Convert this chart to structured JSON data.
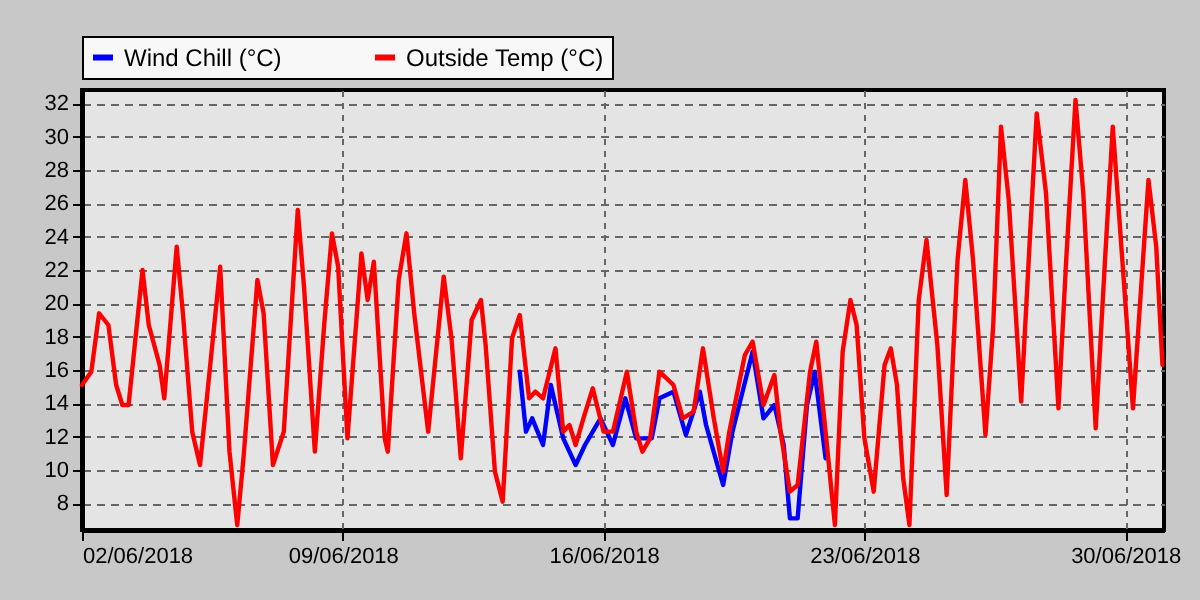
{
  "chart_data": {
    "type": "line",
    "xlim": [
      "2018-06-02T00:00",
      "2018-07-01T01:00"
    ],
    "xticks": [
      {
        "value": "2018-06-02",
        "label": "02/06/2018"
      },
      {
        "value": "2018-06-09",
        "label": "09/06/2018"
      },
      {
        "value": "2018-06-16",
        "label": "16/06/2018"
      },
      {
        "value": "2018-06-23",
        "label": "23/06/2018"
      },
      {
        "value": "2018-06-30",
        "label": "30/06/2018"
      }
    ],
    "ylim": [
      6.4,
      32.8
    ],
    "yticks": [
      8,
      10,
      12,
      14,
      16,
      18,
      20,
      22,
      24,
      26,
      28,
      30,
      32
    ],
    "grid": true,
    "legend": "top",
    "marker": "none",
    "line_style": "solid",
    "series": [
      {
        "name": "Wind Chill (°C)",
        "color": "#0000ff",
        "x": [
          "2018-06-13T18:00",
          "2018-06-13T22:00",
          "2018-06-14T02:00",
          "2018-06-14T09:00",
          "2018-06-14T14:00",
          "2018-06-14T22:00",
          "2018-06-15T06:00",
          "2018-06-15T12:00",
          "2018-06-15T22:00",
          "2018-06-16T06:00",
          "2018-06-16T14:00",
          "2018-06-16T21:00",
          "2018-06-17T07:00",
          "2018-06-17T12:00",
          "2018-06-17T21:00",
          "2018-06-18T05:00",
          "2018-06-18T14:00",
          "2018-06-18T18:00",
          "2018-06-19T05:00",
          "2018-06-19T11:00",
          "2018-06-20T00:00",
          "2018-06-20T07:00",
          "2018-06-20T14:00",
          "2018-06-20T20:00",
          "2018-06-21T00:00",
          "2018-06-21T05:00",
          "2018-06-21T11:00",
          "2018-06-21T16:00",
          "2018-06-21T23:00"
        ],
        "values": [
          15.9,
          12.3,
          13.1,
          11.5,
          15.1,
          11.9,
          10.3,
          11.5,
          13.1,
          11.5,
          14.3,
          11.9,
          11.9,
          14.3,
          14.7,
          12.1,
          14.7,
          12.7,
          9.1,
          12.3,
          17.1,
          13.1,
          13.9,
          11.5,
          7.1,
          7.1,
          13.9,
          15.9,
          10.7
        ]
      },
      {
        "name": "Outside Temp (°C)",
        "color": "#ff0000",
        "x": [
          "2018-06-02T00:00",
          "2018-06-02T06:00",
          "2018-06-02T11:00",
          "2018-06-02T17:00",
          "2018-06-02T22:00",
          "2018-06-03T02:00",
          "2018-06-03T06:00",
          "2018-06-03T15:00",
          "2018-06-03T19:00",
          "2018-06-04T02:00",
          "2018-06-04T05:00",
          "2018-06-04T13:00",
          "2018-06-04T17:00",
          "2018-06-04T23:00",
          "2018-06-05T04:00",
          "2018-06-05T08:00",
          "2018-06-05T17:00",
          "2018-06-05T23:00",
          "2018-06-06T04:00",
          "2018-06-06T08:00",
          "2018-06-06T17:00",
          "2018-06-06T21:00",
          "2018-06-07T03:00",
          "2018-06-07T10:00",
          "2018-06-07T19:00",
          "2018-06-07T23:00",
          "2018-06-08T06:00",
          "2018-06-08T12:00",
          "2018-06-08T17:00",
          "2018-06-08T21:00",
          "2018-06-09T03:00",
          "2018-06-09T12:00",
          "2018-06-09T16:00",
          "2018-06-09T20:00",
          "2018-06-10T03:00",
          "2018-06-10T05:00",
          "2018-06-10T12:00",
          "2018-06-10T17:00",
          "2018-06-10T22:00",
          "2018-06-11T07:00",
          "2018-06-11T17:00",
          "2018-06-11T22:00",
          "2018-06-12T04:00",
          "2018-06-12T11:00",
          "2018-06-12T17:00",
          "2018-06-12T20:00",
          "2018-06-13T02:00",
          "2018-06-13T07:00",
          "2018-06-13T13:00",
          "2018-06-13T18:00",
          "2018-06-14T00:00",
          "2018-06-14T04:00",
          "2018-06-14T09:00",
          "2018-06-14T17:00",
          "2018-06-14T22:00",
          "2018-06-15T02:00",
          "2018-06-15T06:00",
          "2018-06-15T11:00",
          "2018-06-15T17:00",
          "2018-06-16T00:00",
          "2018-06-16T06:00",
          "2018-06-16T15:00",
          "2018-06-16T21:00",
          "2018-06-17T01:00",
          "2018-06-17T06:00",
          "2018-06-17T12:00",
          "2018-06-17T21:00",
          "2018-06-18T03:00",
          "2018-06-18T10:00",
          "2018-06-18T16:00",
          "2018-06-18T23:00",
          "2018-06-19T05:00",
          "2018-06-19T09:00",
          "2018-06-19T19:00",
          "2018-06-20T00:00",
          "2018-06-20T07:00",
          "2018-06-20T14:00",
          "2018-06-20T18:00",
          "2018-06-21T00:00",
          "2018-06-21T05:00",
          "2018-06-21T13:00",
          "2018-06-21T17:00",
          "2018-06-21T23:00",
          "2018-06-22T05:00",
          "2018-06-22T10:00",
          "2018-06-22T15:00",
          "2018-06-22T19:00",
          "2018-06-23T00:00",
          "2018-06-23T06:00",
          "2018-06-23T13:00",
          "2018-06-23T17:00",
          "2018-06-23T21:00",
          "2018-06-24T01:00",
          "2018-06-24T05:00",
          "2018-06-24T11:00",
          "2018-06-24T16:00",
          "2018-06-24T23:00",
          "2018-06-25T05:00",
          "2018-06-25T12:00",
          "2018-06-25T17:00",
          "2018-06-25T22:00",
          "2018-06-26T06:00",
          "2018-06-26T11:00",
          "2018-06-26T16:00",
          "2018-06-26T21:00",
          "2018-06-27T05:00",
          "2018-06-27T11:00",
          "2018-06-27T15:00",
          "2018-06-27T21:00",
          "2018-06-28T05:00",
          "2018-06-28T10:00",
          "2018-06-28T16:00",
          "2018-06-28T21:00",
          "2018-06-29T05:00",
          "2018-06-29T11:00",
          "2018-06-29T16:00",
          "2018-06-29T20:00",
          "2018-06-30T05:00",
          "2018-06-30T10:00",
          "2018-06-30T15:00",
          "2018-06-30T20:00",
          "2018-07-01T00:00"
        ],
        "values": [
          15.1,
          15.9,
          19.4,
          18.7,
          15.1,
          13.9,
          13.9,
          22.0,
          18.7,
          16.3,
          14.3,
          23.4,
          19.4,
          12.3,
          10.3,
          13.9,
          22.2,
          11.1,
          6.7,
          10.7,
          21.4,
          19.4,
          10.3,
          12.3,
          25.6,
          21.0,
          11.1,
          18.7,
          24.2,
          22.2,
          11.9,
          23.0,
          20.2,
          22.5,
          11.9,
          11.1,
          21.4,
          24.2,
          19.4,
          12.3,
          21.6,
          17.9,
          10.7,
          19.0,
          20.2,
          17.5,
          9.9,
          8.1,
          17.9,
          19.3,
          14.3,
          14.7,
          14.3,
          17.3,
          12.3,
          12.7,
          11.5,
          13.1,
          14.9,
          12.3,
          12.3,
          15.9,
          12.3,
          11.1,
          11.9,
          15.9,
          15.1,
          13.1,
          13.5,
          17.3,
          13.1,
          9.9,
          12.3,
          16.9,
          17.7,
          13.9,
          15.7,
          12.3,
          8.7,
          9.1,
          15.9,
          17.7,
          12.3,
          6.7,
          17.1,
          20.2,
          18.7,
          11.9,
          8.7,
          16.3,
          17.3,
          15.1,
          9.5,
          6.7,
          20.2,
          23.8,
          17.5,
          8.5,
          22.6,
          27.4,
          22.6,
          12.1,
          18.7,
          30.6,
          26.2,
          14.1,
          24.6,
          31.4,
          26.6,
          13.7,
          22.6,
          32.2,
          26.6,
          12.5,
          22.6,
          30.6,
          25.4,
          13.7,
          20.6,
          27.4,
          23.4,
          16.3
        ]
      }
    ]
  }
}
